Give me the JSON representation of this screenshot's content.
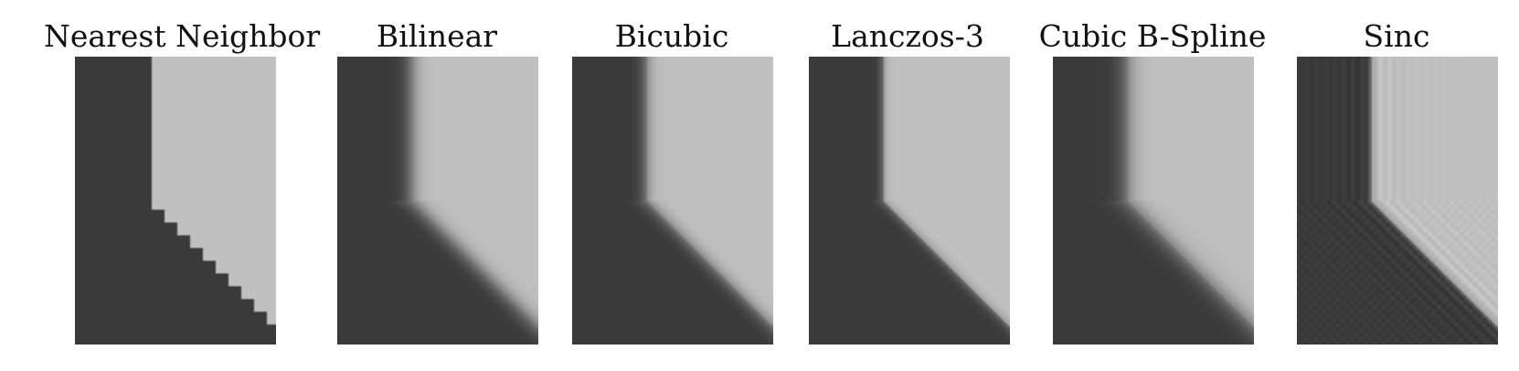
{
  "colors": {
    "dark": "#3a3a3a",
    "light": "#c0c0c0",
    "overshoot": "#e6e6e6",
    "undershoot": "#1f1f1f"
  },
  "panels": [
    {
      "title": "Nearest Neighbor",
      "method": "nearest"
    },
    {
      "title": "Bilinear",
      "method": "bilinear"
    },
    {
      "title": "Bicubic",
      "method": "bicubic"
    },
    {
      "title": "Lanczos-3",
      "method": "lanczos3"
    },
    {
      "title": "Cubic B-Spline",
      "method": "bspline"
    },
    {
      "title": "Sinc",
      "method": "sinc"
    }
  ]
}
